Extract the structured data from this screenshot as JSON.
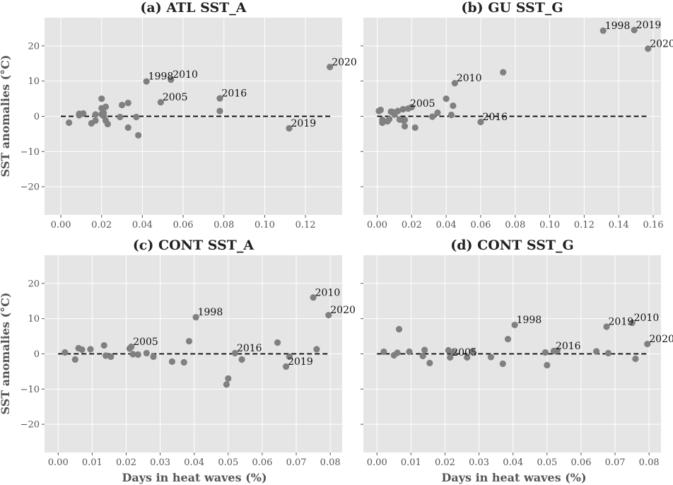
{
  "y_label": "SST anomalies (°C)",
  "x_label": "Days in heat waves (%)",
  "chart_data": [
    {
      "type": "scatter",
      "title": "(a) ATL SST_A",
      "xlabel": "",
      "ylabel": "SST anomalies (°C)",
      "xlim": [
        -0.008,
        0.138
      ],
      "ylim": [
        -28,
        28
      ],
      "x_ticks": [
        0.0,
        0.02,
        0.04,
        0.06,
        0.08,
        0.1,
        0.12
      ],
      "x_tick_labels": [
        "0.00",
        "0.02",
        "0.04",
        "0.06",
        "0.08",
        "0.10",
        "0.12"
      ],
      "y_ticks": [
        -20,
        -10,
        0,
        10,
        20
      ],
      "y_tick_labels": [
        "−20",
        "−10",
        "0",
        "10",
        "20"
      ],
      "show_x_tick_labels": true,
      "show_y_tick_labels": true,
      "zero_line": [
        0.0,
        0.133
      ],
      "points": [
        [
          0.004,
          -1.8
        ],
        [
          0.009,
          0.3
        ],
        [
          0.009,
          0.7
        ],
        [
          0.011,
          0.8
        ],
        [
          0.015,
          -2.0
        ],
        [
          0.017,
          -1.2
        ],
        [
          0.017,
          0.5
        ],
        [
          0.02,
          5.0
        ],
        [
          0.02,
          0.6
        ],
        [
          0.02,
          2.3
        ],
        [
          0.021,
          1.0
        ],
        [
          0.021,
          0.1
        ],
        [
          0.022,
          -1.2
        ],
        [
          0.022,
          2.7
        ],
        [
          0.023,
          -2.2
        ],
        [
          0.029,
          -0.2
        ],
        [
          0.03,
          3.2
        ],
        [
          0.033,
          3.8
        ],
        [
          0.033,
          -3.2
        ],
        [
          0.037,
          -0.2
        ],
        [
          0.038,
          -5.4
        ],
        [
          0.042,
          9.9
        ],
        [
          0.049,
          4.0
        ],
        [
          0.054,
          10.4
        ],
        [
          0.078,
          5.1
        ],
        [
          0.078,
          1.5
        ],
        [
          0.112,
          -3.4
        ],
        [
          0.132,
          14.0
        ]
      ],
      "annotations": [
        {
          "x": 0.042,
          "y": 9.9,
          "text": "1998"
        },
        {
          "x": 0.054,
          "y": 10.4,
          "text": "2010"
        },
        {
          "x": 0.049,
          "y": 4.0,
          "text": "2005"
        },
        {
          "x": 0.078,
          "y": 5.1,
          "text": "2016"
        },
        {
          "x": 0.112,
          "y": -3.4,
          "text": "2019"
        },
        {
          "x": 0.132,
          "y": 14.0,
          "text": "2020"
        }
      ]
    },
    {
      "type": "scatter",
      "title": "(b) GU SST_G",
      "xlabel": "",
      "ylabel": "",
      "xlim": [
        -0.008,
        0.1645
      ],
      "ylim": [
        -28,
        28
      ],
      "x_ticks": [
        0.0,
        0.02,
        0.04,
        0.06,
        0.08,
        0.1,
        0.12,
        0.14,
        0.16
      ],
      "x_tick_labels": [
        "0.00",
        "0.02",
        "0.04",
        "0.06",
        "0.08",
        "0.10",
        "0.12",
        "0.14",
        "0.16"
      ],
      "y_ticks": [
        -20,
        -10,
        0,
        10,
        20
      ],
      "y_tick_labels": [
        "−20",
        "−10",
        "0",
        "10",
        "20"
      ],
      "show_x_tick_labels": true,
      "show_y_tick_labels": false,
      "zero_line": [
        0.0,
        0.157
      ],
      "points": [
        [
          0.001,
          1.5
        ],
        [
          0.002,
          1.8
        ],
        [
          0.003,
          -1.0
        ],
        [
          0.003,
          -1.8
        ],
        [
          0.006,
          -1.4
        ],
        [
          0.007,
          -0.8
        ],
        [
          0.008,
          1.3
        ],
        [
          0.009,
          1.2
        ],
        [
          0.01,
          0.5
        ],
        [
          0.012,
          1.5
        ],
        [
          0.013,
          -0.9
        ],
        [
          0.015,
          2.0
        ],
        [
          0.015,
          -1.1
        ],
        [
          0.016,
          -1.0
        ],
        [
          0.016,
          -2.8
        ],
        [
          0.018,
          2.2
        ],
        [
          0.02,
          2.6
        ],
        [
          0.022,
          -3.2
        ],
        [
          0.032,
          -0.1
        ],
        [
          0.035,
          1.0
        ],
        [
          0.04,
          5.0
        ],
        [
          0.043,
          0.4
        ],
        [
          0.044,
          3.0
        ],
        [
          0.045,
          9.4
        ],
        [
          0.06,
          -1.6
        ],
        [
          0.073,
          12.5
        ],
        [
          0.131,
          24.3
        ],
        [
          0.149,
          24.5
        ],
        [
          0.157,
          19.2
        ]
      ],
      "annotations": [
        {
          "x": 0.045,
          "y": 9.4,
          "text": "2010"
        },
        {
          "x": 0.018,
          "y": 2.2,
          "text": "2005"
        },
        {
          "x": 0.06,
          "y": -1.6,
          "text": "2016"
        },
        {
          "x": 0.131,
          "y": 24.3,
          "text": "1998"
        },
        {
          "x": 0.149,
          "y": 24.5,
          "text": "2019"
        },
        {
          "x": 0.157,
          "y": 19.2,
          "text": "2020"
        }
      ]
    },
    {
      "type": "scatter",
      "title": "(c) CONT SST_A",
      "xlabel": "Days in heat waves (%)",
      "ylabel": "SST anomalies (°C)",
      "xlim": [
        -0.004,
        0.0835
      ],
      "ylim": [
        -28,
        28
      ],
      "x_ticks": [
        0.0,
        0.01,
        0.02,
        0.03,
        0.04,
        0.05,
        0.06,
        0.07,
        0.08
      ],
      "x_tick_labels": [
        "0.00",
        "0.01",
        "0.02",
        "0.03",
        "0.04",
        "0.05",
        "0.06",
        "0.07",
        "0.08"
      ],
      "y_ticks": [
        -20,
        -10,
        0,
        10,
        20
      ],
      "y_tick_labels": [
        "−20",
        "−10",
        "0",
        "10",
        "20"
      ],
      "show_x_tick_labels": true,
      "show_y_tick_labels": true,
      "zero_line": [
        0.0,
        0.0795
      ],
      "points": [
        [
          0.002,
          0.4
        ],
        [
          0.005,
          -1.6
        ],
        [
          0.006,
          1.6
        ],
        [
          0.007,
          1.2
        ],
        [
          0.0095,
          1.3
        ],
        [
          0.0135,
          2.4
        ],
        [
          0.014,
          -0.5
        ],
        [
          0.0155,
          -0.8
        ],
        [
          0.021,
          1.5
        ],
        [
          0.0215,
          2.0
        ],
        [
          0.022,
          -0.1
        ],
        [
          0.0235,
          -0.2
        ],
        [
          0.026,
          0.2
        ],
        [
          0.028,
          -0.8
        ],
        [
          0.0335,
          -2.2
        ],
        [
          0.037,
          -2.4
        ],
        [
          0.0385,
          3.6
        ],
        [
          0.0405,
          10.4
        ],
        [
          0.0495,
          -8.7
        ],
        [
          0.05,
          -7.0
        ],
        [
          0.052,
          0.2
        ],
        [
          0.054,
          -1.6
        ],
        [
          0.0645,
          3.2
        ],
        [
          0.067,
          -3.6
        ],
        [
          0.068,
          -0.8
        ],
        [
          0.075,
          16.0
        ],
        [
          0.076,
          1.3
        ],
        [
          0.0795,
          11.0
        ]
      ],
      "annotations": [
        {
          "x": 0.0405,
          "y": 10.4,
          "text": "1998"
        },
        {
          "x": 0.0215,
          "y": 2.0,
          "text": "2005"
        },
        {
          "x": 0.052,
          "y": 0.2,
          "text": "2016"
        },
        {
          "x": 0.067,
          "y": -3.6,
          "text": "2019"
        },
        {
          "x": 0.075,
          "y": 16.0,
          "text": "2010"
        },
        {
          "x": 0.0795,
          "y": 11.0,
          "text": "2020"
        }
      ]
    },
    {
      "type": "scatter",
      "title": "(d) CONT SST_G",
      "xlabel": "Days in heat waves (%)",
      "ylabel": "",
      "xlim": [
        -0.004,
        0.0835
      ],
      "ylim": [
        -28,
        28
      ],
      "x_ticks": [
        0.0,
        0.01,
        0.02,
        0.03,
        0.04,
        0.05,
        0.06,
        0.07,
        0.08
      ],
      "x_tick_labels": [
        "0.00",
        "0.01",
        "0.02",
        "0.03",
        "0.04",
        "0.05",
        "0.06",
        "0.07",
        "0.08"
      ],
      "y_ticks": [
        -20,
        -10,
        0,
        10,
        20
      ],
      "y_tick_labels": [
        "−20",
        "−10",
        "0",
        "10",
        "20"
      ],
      "show_x_tick_labels": true,
      "show_y_tick_labels": false,
      "zero_line": [
        0.0,
        0.0795
      ],
      "points": [
        [
          0.002,
          0.6
        ],
        [
          0.005,
          -0.4
        ],
        [
          0.006,
          0.3
        ],
        [
          0.0065,
          7.0
        ],
        [
          0.0095,
          0.6
        ],
        [
          0.0135,
          -0.6
        ],
        [
          0.014,
          1.1
        ],
        [
          0.0155,
          -2.6
        ],
        [
          0.021,
          1.0
        ],
        [
          0.0215,
          -1.0
        ],
        [
          0.0225,
          0.4
        ],
        [
          0.0265,
          -1.0
        ],
        [
          0.028,
          0.7
        ],
        [
          0.0335,
          -0.9
        ],
        [
          0.037,
          -2.8
        ],
        [
          0.0385,
          4.2
        ],
        [
          0.0405,
          8.2
        ],
        [
          0.0495,
          0.4
        ],
        [
          0.05,
          -3.2
        ],
        [
          0.052,
          0.8
        ],
        [
          0.053,
          0.9
        ],
        [
          0.0645,
          0.7
        ],
        [
          0.0675,
          7.7
        ],
        [
          0.068,
          0.2
        ],
        [
          0.075,
          8.8
        ],
        [
          0.076,
          -1.4
        ],
        [
          0.0795,
          2.8
        ]
      ],
      "annotations": [
        {
          "x": 0.0405,
          "y": 8.2,
          "text": "1998"
        },
        {
          "x": 0.0215,
          "y": -1.0,
          "text": "2005"
        },
        {
          "x": 0.052,
          "y": 0.8,
          "text": "2016"
        },
        {
          "x": 0.0675,
          "y": 7.7,
          "text": "2019"
        },
        {
          "x": 0.075,
          "y": 8.8,
          "text": "2010"
        },
        {
          "x": 0.0795,
          "y": 2.8,
          "text": "2020"
        }
      ]
    }
  ]
}
